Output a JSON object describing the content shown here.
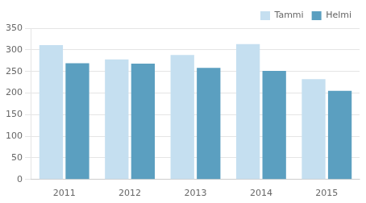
{
  "chart_data": {
    "type": "bar",
    "categories": [
      "2011",
      "2012",
      "2013",
      "2014",
      "2015"
    ],
    "series": [
      {
        "name": "Tammi",
        "color": "#c5dff0",
        "values": [
          311,
          278,
          288,
          313,
          232
        ]
      },
      {
        "name": "Helmi",
        "color": "#5b9fc0",
        "values": [
          269,
          268,
          258,
          251,
          205
        ]
      }
    ],
    "ylim": [
      0,
      350
    ],
    "yticks": [
      0,
      50,
      100,
      150,
      200,
      250,
      300,
      350
    ],
    "grid": true,
    "legend": "upper right"
  }
}
